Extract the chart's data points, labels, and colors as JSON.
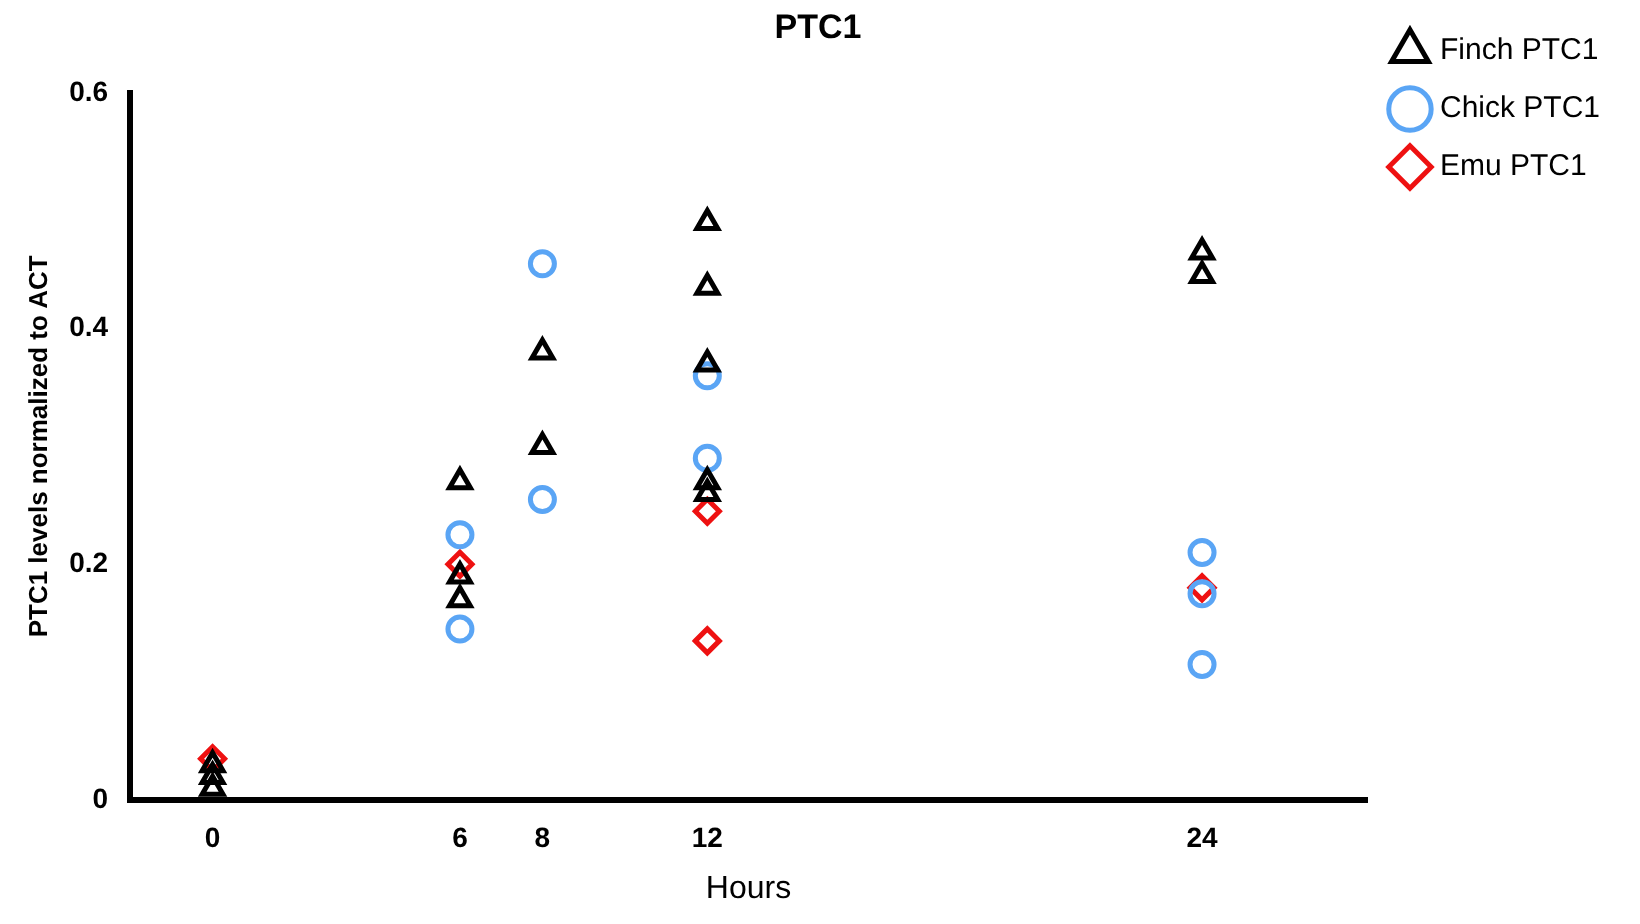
{
  "chart_data": {
    "type": "scatter",
    "title": "PTC1",
    "xlabel": "Hours",
    "ylabel": "PTC1 levels normalized to ACT",
    "xlim": [
      -2,
      28
    ],
    "xticks": [
      0,
      6,
      8,
      12,
      24
    ],
    "ylim": [
      0,
      0.6
    ],
    "yticks": [
      0,
      0.2,
      0.4,
      0.6
    ],
    "grid": false,
    "legend": "top right",
    "series": [
      {
        "name": "Finch PTC1",
        "color": "#000000",
        "marker": "triangle",
        "x": [
          0,
          0,
          0,
          6,
          6,
          6,
          8,
          8,
          12,
          12,
          12,
          12,
          12,
          24,
          24
        ],
        "values": [
          0.03,
          0.02,
          0.01,
          0.27,
          0.19,
          0.17,
          0.38,
          0.3,
          0.49,
          0.435,
          0.37,
          0.27,
          0.26,
          0.465,
          0.445
        ]
      },
      {
        "name": "Chick PTC1",
        "color": "#5aa5f5",
        "marker": "circle",
        "x": [
          6,
          6,
          8,
          8,
          12,
          12,
          24,
          24,
          24
        ],
        "values": [
          0.225,
          0.145,
          0.455,
          0.255,
          0.36,
          0.29,
          0.21,
          0.175,
          0.115
        ]
      },
      {
        "name": "Emu PTC1",
        "color": "#ee1111",
        "marker": "diamond",
        "x": [
          0,
          6,
          12,
          12,
          24
        ],
        "values": [
          0.035,
          0.2,
          0.245,
          0.135,
          0.18
        ]
      }
    ]
  }
}
